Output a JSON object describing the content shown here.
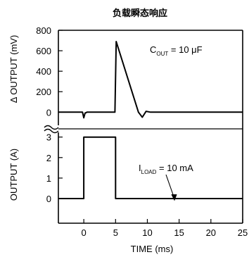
{
  "chart_data": {
    "type": "line",
    "title": "负载瞬态响应",
    "xlabel": "TIME (ms)",
    "x_ticks": [
      "0",
      "5",
      "10",
      "15",
      "20",
      "25"
    ],
    "xlim": [
      -4,
      25
    ],
    "grid": false,
    "panels": [
      {
        "name": "top",
        "ylabel": "Δ OUTPUT (mV)",
        "ylim": [
          -60,
          800
        ],
        "y_ticks": [
          "800",
          "600",
          "400",
          "200",
          "0"
        ],
        "annotation": {
          "main": "C",
          "sub": "OUT",
          "rest": " = 10 μF"
        },
        "series": [
          {
            "x": [
              -4,
              -0.2,
              0.0,
              0.2,
              0.5,
              4.9,
              5.1,
              8.6,
              9.2,
              9.8,
              10.5,
              25
            ],
            "y": [
              0,
              0,
              -55,
              -10,
              0,
              0,
              690,
              0,
              -50,
              8,
              0,
              0
            ]
          }
        ]
      },
      {
        "name": "bottom",
        "ylabel": "OUTPUT (A)",
        "ylim": [
          -1.2,
          3.4
        ],
        "y_ticks": [
          "3",
          "2",
          "1",
          "0"
        ],
        "annotation": {
          "main": "I",
          "sub": "LOAD",
          "rest": " = 10 mA"
        },
        "series": [
          {
            "x": [
              -4,
              0,
              0,
              5,
              5,
              25
            ],
            "y": [
              0,
              0,
              3,
              3,
              0,
              0
            ]
          }
        ]
      }
    ]
  }
}
